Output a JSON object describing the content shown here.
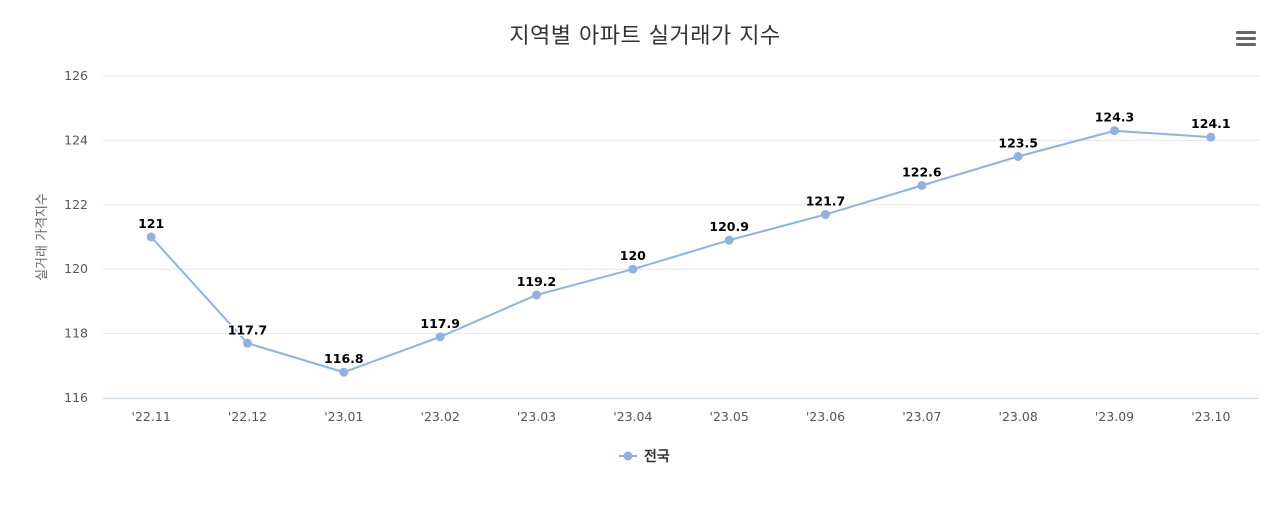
{
  "chart_data": {
    "type": "line",
    "title": "지역별 아파트 실거래가 지수",
    "ylabel": "실거래 가격지수",
    "xlabel": "",
    "ylim": [
      116,
      126
    ],
    "yticks": [
      116,
      118,
      120,
      122,
      124,
      126
    ],
    "categories": [
      "'22.11",
      "'22.12",
      "'23.01",
      "'23.02",
      "'23.03",
      "'23.04",
      "'23.05",
      "'23.06",
      "'23.07",
      "'23.08",
      "'23.09",
      "'23.10"
    ],
    "series": [
      {
        "name": "전국",
        "color": "#8fb2e3",
        "values": [
          121,
          117.7,
          116.8,
          117.9,
          119.2,
          120,
          120.9,
          121.7,
          122.6,
          123.5,
          124.3,
          124.1
        ]
      }
    ],
    "grid": true,
    "legend": "bottom-center"
  },
  "menu": {
    "icon": "hamburger-menu-icon"
  }
}
